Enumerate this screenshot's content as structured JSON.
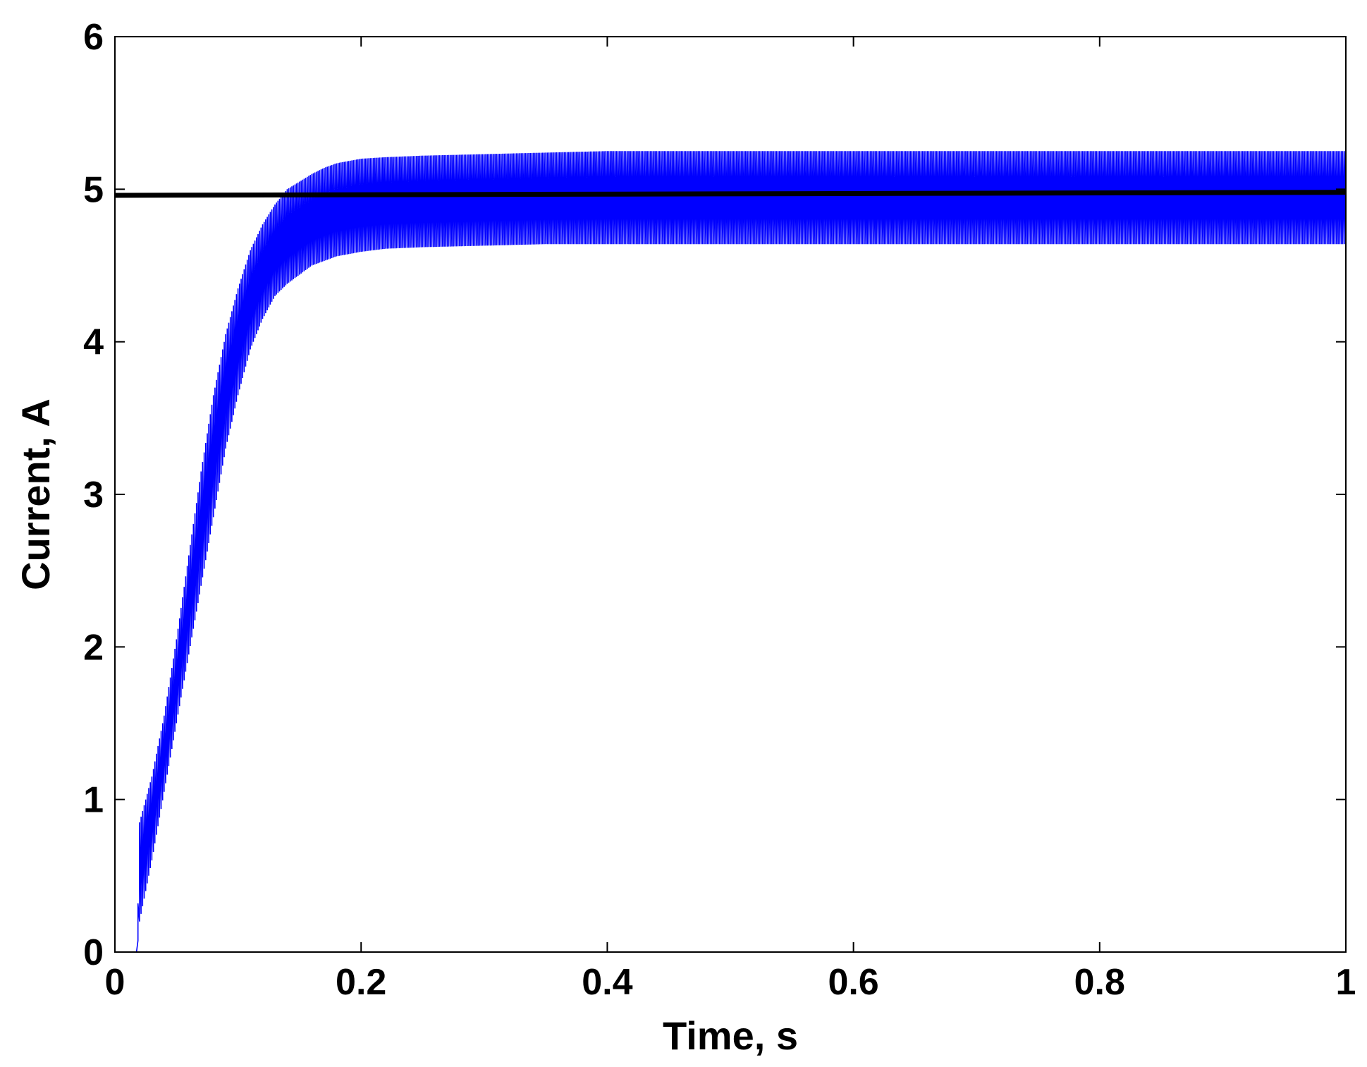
{
  "chart_data": {
    "type": "line",
    "title": "",
    "xlabel": "Time, s",
    "ylabel": "Current, A",
    "xlim": [
      0,
      1
    ],
    "ylim": [
      0,
      6
    ],
    "xticks": [
      "0",
      "0.2",
      "0.4",
      "0.6",
      "0.8",
      "1"
    ],
    "yticks": [
      "0",
      "1",
      "2",
      "3",
      "4",
      "5",
      "6"
    ],
    "grid": false,
    "legend": "none",
    "series": [
      {
        "style": "ripple-band",
        "color": "#0000ff",
        "x": [
          0.0,
          0.018,
          0.02,
          0.03,
          0.04,
          0.05,
          0.06,
          0.07,
          0.08,
          0.09,
          0.1,
          0.11,
          0.12,
          0.13,
          0.14,
          0.15,
          0.16,
          0.17,
          0.18,
          0.2,
          0.22,
          0.25,
          0.3,
          0.35,
          0.4,
          0.5,
          0.6,
          0.7,
          0.8,
          0.9,
          1.0
        ],
        "lower": [
          0.0,
          0.0,
          0.2,
          0.6,
          1.05,
          1.5,
          1.95,
          2.4,
          2.85,
          3.3,
          3.65,
          3.95,
          4.15,
          4.3,
          4.38,
          4.44,
          4.5,
          4.53,
          4.56,
          4.59,
          4.61,
          4.62,
          4.63,
          4.64,
          4.64,
          4.64,
          4.64,
          4.64,
          4.64,
          4.64,
          4.64
        ],
        "upper": [
          0.0,
          0.0,
          0.85,
          1.15,
          1.55,
          2.05,
          2.6,
          3.15,
          3.65,
          4.05,
          4.35,
          4.6,
          4.77,
          4.9,
          5.0,
          5.05,
          5.1,
          5.14,
          5.17,
          5.2,
          5.21,
          5.22,
          5.23,
          5.24,
          5.25,
          5.25,
          5.25,
          5.25,
          5.25,
          5.25,
          5.25
        ]
      },
      {
        "style": "line",
        "color": "#000000",
        "x": [
          0.0,
          1.0
        ],
        "values": [
          4.96,
          4.98
        ]
      }
    ]
  }
}
